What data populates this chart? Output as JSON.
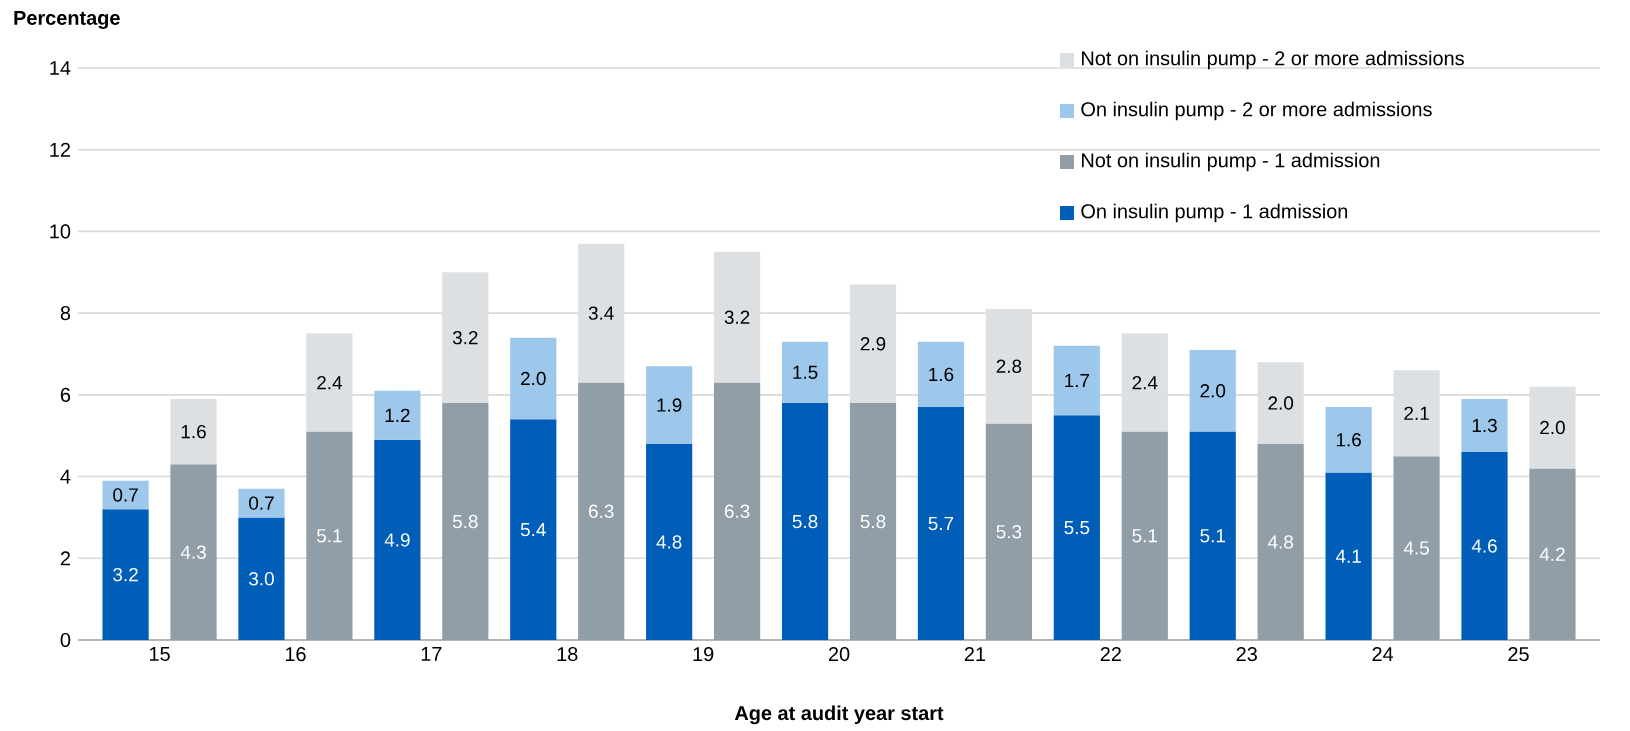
{
  "chart_data": {
    "type": "bar",
    "stacked": true,
    "ylabel": "Percentage",
    "xlabel": "Age at audit year start",
    "categories": [
      "15",
      null,
      "16",
      null,
      "17",
      null,
      "18",
      null,
      "19",
      null,
      "20",
      null,
      "21",
      null,
      "22",
      null,
      "23",
      null,
      "24",
      null,
      "25",
      null
    ],
    "series": [
      {
        "name": "On insulin pump - 1 admission",
        "color": "#005eb8",
        "values": [
          3.2,
          null,
          3.0,
          null,
          4.9,
          null,
          5.4,
          null,
          4.8,
          null,
          5.8,
          null,
          5.7,
          null,
          5.5,
          null,
          5.1,
          null,
          4.1,
          null,
          4.6,
          null
        ],
        "value_labels": [
          "3.2",
          null,
          "3.0",
          null,
          "4.9",
          null,
          "5.4",
          null,
          "4.8",
          null,
          "5.8",
          null,
          "5.7",
          null,
          "5.5",
          null,
          "5.1",
          null,
          "4.1",
          null,
          "4.6",
          null
        ]
      },
      {
        "name": "Not on insulin pump - 1 admission",
        "color": "#919ea8",
        "values": [
          null,
          4.3,
          null,
          5.1,
          null,
          5.8,
          null,
          6.3,
          null,
          6.3,
          null,
          5.8,
          null,
          5.3,
          null,
          5.1,
          null,
          4.8,
          null,
          4.5,
          null,
          4.2
        ],
        "value_labels": [
          null,
          "4.3",
          null,
          "5.1",
          null,
          "5.8",
          null,
          "6.3",
          null,
          "6.3",
          null,
          "5.8",
          null,
          "5.3",
          null,
          "5.1",
          null,
          "4.8",
          null,
          "4.5",
          null,
          "4.2"
        ]
      },
      {
        "name": "On insulin pump - 2 or more admissions",
        "color": "#9dc8ec",
        "values": [
          0.7,
          null,
          0.7,
          null,
          1.2,
          null,
          2.0,
          null,
          1.9,
          null,
          1.5,
          null,
          1.6,
          null,
          1.7,
          null,
          2.0,
          null,
          1.6,
          null,
          1.3,
          null
        ],
        "value_labels": [
          "0.7",
          null,
          "0.7",
          null,
          "1.2",
          null,
          "2.0",
          null,
          "1.9",
          null,
          "1.5",
          null,
          "1.6",
          null,
          "1.7",
          null,
          "2.0",
          null,
          "1.6",
          null,
          "1.3",
          null
        ]
      },
      {
        "name": "Not on insulin pump - 2 or more admissions",
        "color": "#dde0e3",
        "values": [
          null,
          1.6,
          null,
          2.4,
          null,
          3.2,
          null,
          3.4,
          null,
          3.2,
          null,
          2.9,
          null,
          2.8,
          null,
          2.4,
          null,
          2.0,
          null,
          2.1,
          null,
          2.0
        ],
        "value_labels": [
          null,
          "1.6",
          null,
          "2.4",
          null,
          "3.2",
          null,
          "3.4",
          null,
          "3.2",
          null,
          "2.9",
          null,
          "2.8",
          null,
          "2.4",
          null,
          "2.0",
          null,
          "2.1",
          null,
          "2.0"
        ]
      }
    ],
    "ylim": [
      0,
      14
    ],
    "yticks": [
      0,
      2,
      4,
      6,
      8,
      10,
      12,
      14
    ],
    "grid": "y",
    "legend": "top right"
  }
}
